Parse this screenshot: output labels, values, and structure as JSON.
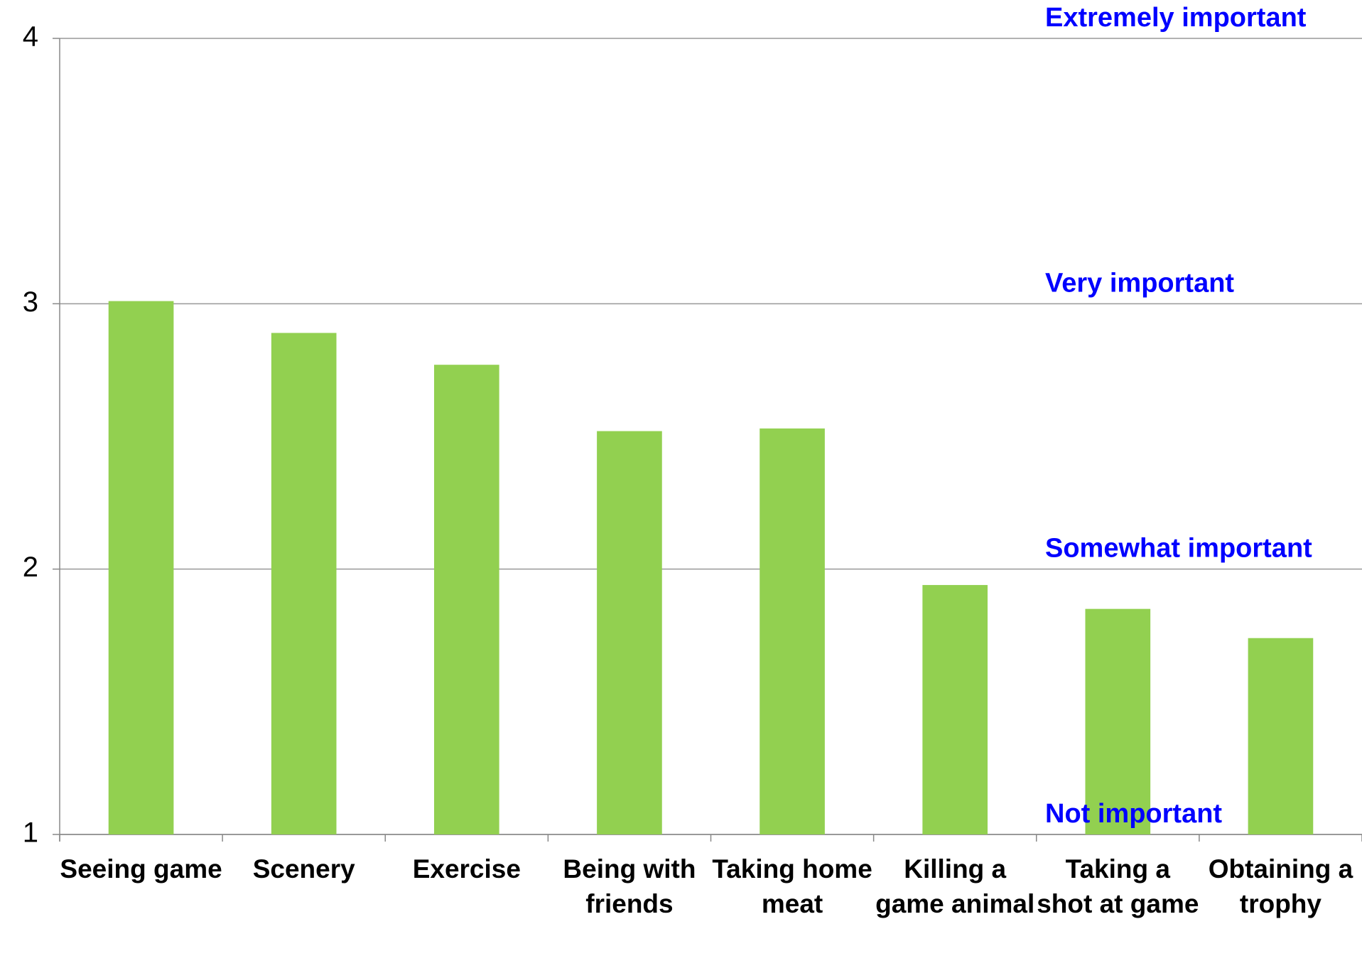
{
  "chart_data": {
    "type": "bar",
    "categories": [
      "Seeing game",
      "Scenery",
      "Exercise",
      "Being with friends",
      "Taking home meat",
      "Killing a game animal",
      "Taking a shot at game",
      "Obtaining a trophy"
    ],
    "values": [
      3.01,
      2.89,
      2.77,
      2.52,
      2.53,
      1.94,
      1.85,
      1.74
    ],
    "color": "#92d050",
    "ylim": [
      1,
      4
    ],
    "yticks": [
      1,
      2,
      3,
      4
    ],
    "grid": true,
    "annotations": [
      {
        "text": "Extremely important",
        "y": 4
      },
      {
        "text": "Very important",
        "y": 3
      },
      {
        "text": "Somewhat important",
        "y": 2
      },
      {
        "text": "Not important",
        "y": 1
      }
    ],
    "annotation_color": "#0000ff"
  }
}
